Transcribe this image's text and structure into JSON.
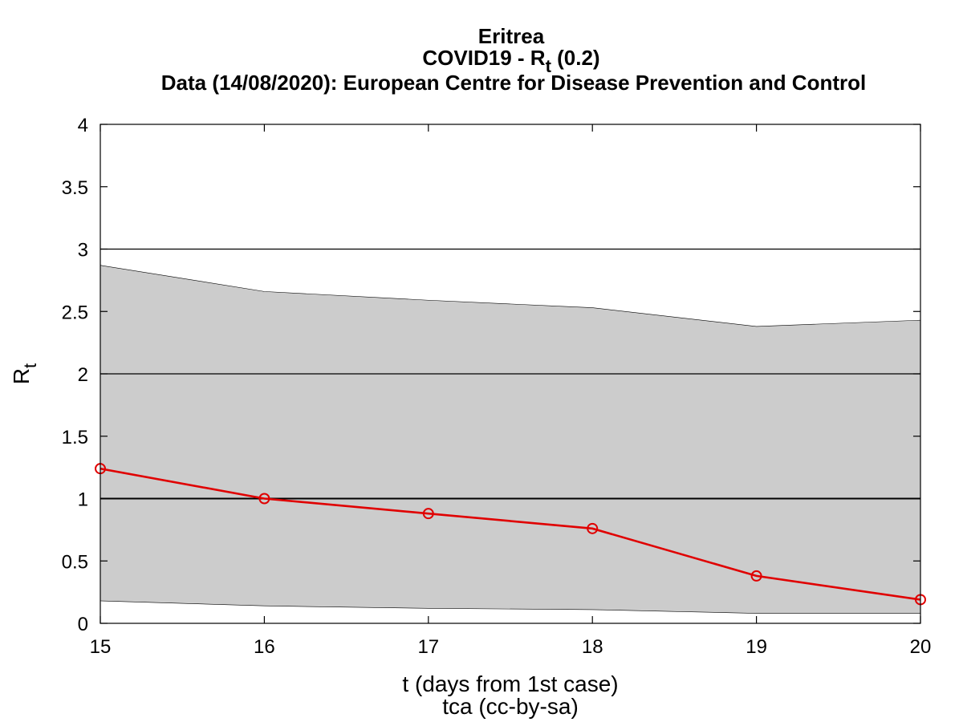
{
  "chart_data": {
    "type": "line",
    "title": "Eritrea",
    "subtitle_prefix": "COVID19 - R",
    "subtitle_sub": "t",
    "subtitle_suffix": " (0.2)",
    "subtitle2": "Data (14/08/2020): European Centre for Disease Prevention and Control",
    "xlabel": "t (days from 1st case)",
    "ylabel_main": "R",
    "ylabel_sub": "t",
    "credit": "tca (cc-by-sa)",
    "xlim": [
      15,
      20
    ],
    "ylim": [
      0,
      4
    ],
    "x_ticks": [
      "15",
      "16",
      "17",
      "18",
      "19",
      "20"
    ],
    "y_ticks": [
      "0",
      "0.5",
      "1",
      "1.5",
      "2",
      "2.5",
      "3",
      "3.5",
      "4"
    ],
    "reference_lines": [
      1,
      2,
      3
    ],
    "x": [
      15,
      16,
      17,
      18,
      19,
      20
    ],
    "series": [
      {
        "values": [
          1.24,
          1.0,
          0.88,
          0.76,
          0.38,
          0.19
        ],
        "color": "#e00000"
      }
    ],
    "band": {
      "upper": [
        2.87,
        2.66,
        2.59,
        2.53,
        2.38,
        2.43
      ],
      "lower": [
        0.18,
        0.14,
        0.12,
        0.11,
        0.08,
        0.08
      ],
      "color": "#cccccc"
    },
    "grid": false
  }
}
